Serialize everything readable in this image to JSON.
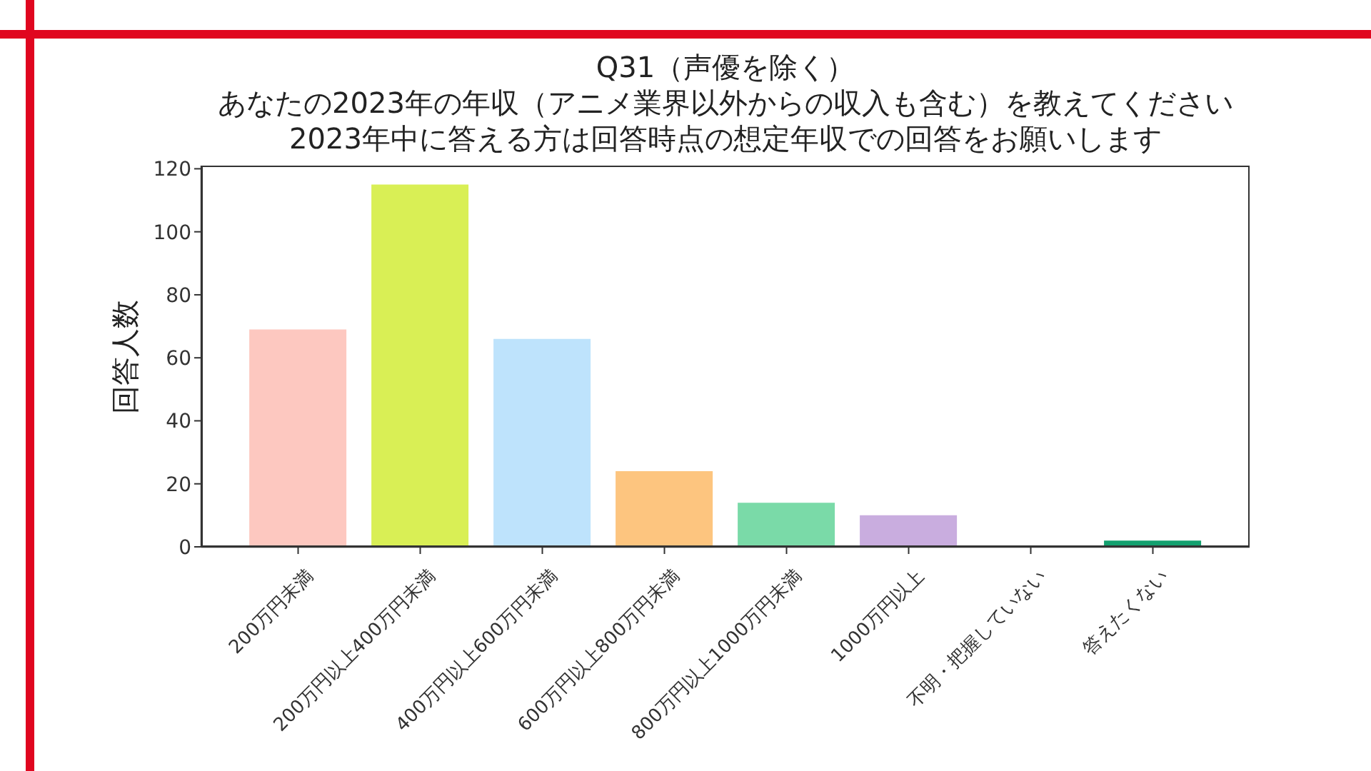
{
  "chart_data": {
    "type": "bar",
    "title": "Q31（声優を除く）",
    "subtitle": "あなたの2023年の年収（アニメ業界以外からの収入も含む）を教えてください",
    "annotations": [
      "2023年中に答える方は回答時点の想定年収での回答をお願いします"
    ],
    "ylabel": "回答人数",
    "categories": [
      "200万円未満",
      "200万円以上400万円未満",
      "400万円以上600万円未満",
      "600万円以上800万円未満",
      "800万円以上1000万円未満",
      "1000万円以上",
      "不明・把握していない",
      "答えたくない"
    ],
    "values": [
      69,
      115,
      66,
      24,
      14,
      10,
      0,
      2
    ],
    "colors": [
      "#fdc8c0",
      "#d9ef55",
      "#bee3fc",
      "#fdc57f",
      "#7adaa8",
      "#c9addf",
      "#f4a6c8",
      "#13a06f"
    ],
    "ylim": [
      0,
      121
    ],
    "yticks": [
      0,
      20,
      40,
      60,
      80,
      100,
      120
    ]
  }
}
